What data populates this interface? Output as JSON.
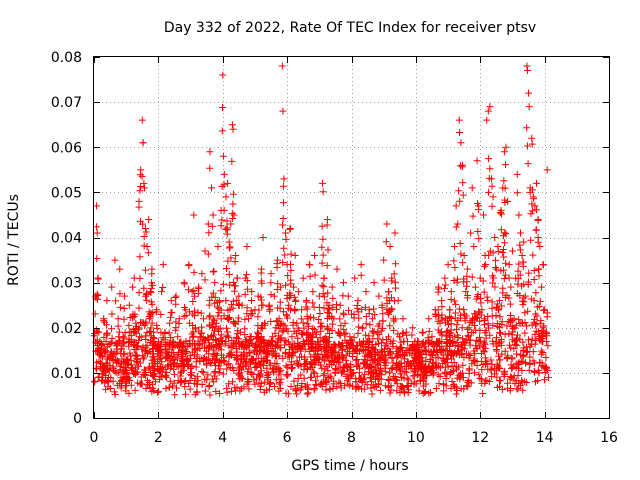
{
  "chart_data": {
    "type": "scatter",
    "title": "Day 332 of 2022, Rate Of TEC Index for receiver ptsv",
    "xlabel": "GPS time / hours",
    "ylabel": "ROTI / TECUs",
    "xlim": [
      0,
      16
    ],
    "ylim": [
      0,
      0.08
    ],
    "x_ticks": [
      0,
      2,
      4,
      6,
      8,
      10,
      12,
      14,
      16
    ],
    "x_tick_labels": [
      "0",
      "2",
      "4",
      "6",
      "8",
      "10",
      "12",
      "14",
      "16"
    ],
    "y_ticks": [
      0,
      0.01,
      0.02,
      0.03,
      0.04,
      0.05,
      0.06,
      0.07,
      0.08
    ],
    "y_tick_labels": [
      "0",
      "0.01",
      "0.02",
      "0.03",
      "0.04",
      "0.05",
      "0.06",
      "0.07",
      "0.08"
    ],
    "grid": true,
    "marker": "+",
    "color": "#ff0000",
    "series": [
      {
        "name": "ROTI",
        "points": [
          [
            0.05,
            0.027
          ],
          [
            0.08,
            0.047
          ],
          [
            0.1,
            0.041
          ],
          [
            0.12,
            0.031
          ],
          [
            0.15,
            0.019
          ],
          [
            0.2,
            0.015
          ],
          [
            0.25,
            0.012
          ],
          [
            0.3,
            0.022
          ],
          [
            0.35,
            0.011
          ],
          [
            0.4,
            0.026
          ],
          [
            0.45,
            0.009
          ],
          [
            0.5,
            0.014
          ],
          [
            0.55,
            0.029
          ],
          [
            0.6,
            0.011
          ],
          [
            0.65,
            0.035
          ],
          [
            0.7,
            0.016
          ],
          [
            0.75,
            0.022
          ],
          [
            0.8,
            0.033
          ],
          [
            0.85,
            0.012
          ],
          [
            0.9,
            0.018
          ],
          [
            0.95,
            0.027
          ],
          [
            1.0,
            0.008
          ],
          [
            1.05,
            0.013
          ],
          [
            1.1,
            0.025
          ],
          [
            1.15,
            0.019
          ],
          [
            1.2,
            0.029
          ],
          [
            1.25,
            0.031
          ],
          [
            1.3,
            0.021
          ],
          [
            1.35,
            0.016
          ],
          [
            1.4,
            0.048
          ],
          [
            1.45,
            0.055
          ],
          [
            1.5,
            0.066
          ],
          [
            1.52,
            0.061
          ],
          [
            1.55,
            0.052
          ],
          [
            1.6,
            0.042
          ],
          [
            1.65,
            0.038
          ],
          [
            1.7,
            0.044
          ],
          [
            1.75,
            0.028
          ],
          [
            1.8,
            0.033
          ],
          [
            1.85,
            0.019
          ],
          [
            1.9,
            0.012
          ],
          [
            1.95,
            0.024
          ],
          [
            2.0,
            0.016
          ],
          [
            2.05,
            0.011
          ],
          [
            2.1,
            0.028
          ],
          [
            2.15,
            0.034
          ],
          [
            2.2,
            0.019
          ],
          [
            2.25,
            0.009
          ],
          [
            2.3,
            0.014
          ],
          [
            2.35,
            0.021
          ],
          [
            2.4,
            0.026
          ],
          [
            2.45,
            0.017
          ],
          [
            2.5,
            0.012
          ],
          [
            2.55,
            0.027
          ],
          [
            2.6,
            0.018
          ],
          [
            2.65,
            0.022
          ],
          [
            2.7,
            0.01
          ],
          [
            2.75,
            0.015
          ],
          [
            2.8,
            0.03
          ],
          [
            2.85,
            0.024
          ],
          [
            2.9,
            0.013
          ],
          [
            2.95,
            0.034
          ],
          [
            3.0,
            0.011
          ],
          [
            3.05,
            0.028
          ],
          [
            3.1,
            0.045
          ],
          [
            3.15,
            0.02
          ],
          [
            3.2,
            0.014
          ],
          [
            3.25,
            0.029
          ],
          [
            3.3,
            0.018
          ],
          [
            3.35,
            0.032
          ],
          [
            3.4,
            0.022
          ],
          [
            3.45,
            0.037
          ],
          [
            3.5,
            0.013
          ],
          [
            3.55,
            0.043
          ],
          [
            3.6,
            0.059
          ],
          [
            3.65,
            0.051
          ],
          [
            3.7,
            0.045
          ],
          [
            3.75,
            0.03
          ],
          [
            3.8,
            0.021
          ],
          [
            3.85,
            0.038
          ],
          [
            3.9,
            0.026
          ],
          [
            3.95,
            0.046
          ],
          [
            4.0,
            0.076
          ],
          [
            4.02,
            0.058
          ],
          [
            4.05,
            0.054
          ],
          [
            4.1,
            0.049
          ],
          [
            4.15,
            0.052
          ],
          [
            4.2,
            0.039
          ],
          [
            4.25,
            0.043
          ],
          [
            4.3,
            0.065
          ],
          [
            4.32,
            0.064
          ],
          [
            4.35,
            0.045
          ],
          [
            4.4,
            0.036
          ],
          [
            4.45,
            0.031
          ],
          [
            4.5,
            0.027
          ],
          [
            4.55,
            0.019
          ],
          [
            4.6,
            0.025
          ],
          [
            4.65,
            0.016
          ],
          [
            4.7,
            0.031
          ],
          [
            4.75,
            0.038
          ],
          [
            4.8,
            0.022
          ],
          [
            4.85,
            0.018
          ],
          [
            4.9,
            0.028
          ],
          [
            4.95,
            0.013
          ],
          [
            5.0,
            0.024
          ],
          [
            5.05,
            0.018
          ],
          [
            5.1,
            0.027
          ],
          [
            5.15,
            0.012
          ],
          [
            5.2,
            0.033
          ],
          [
            5.25,
            0.04
          ],
          [
            5.3,
            0.021
          ],
          [
            5.35,
            0.015
          ],
          [
            5.4,
            0.009
          ],
          [
            5.45,
            0.025
          ],
          [
            5.5,
            0.032
          ],
          [
            5.55,
            0.018
          ],
          [
            5.6,
            0.027
          ],
          [
            5.65,
            0.02
          ],
          [
            5.7,
            0.035
          ],
          [
            5.75,
            0.022
          ],
          [
            5.8,
            0.029
          ],
          [
            5.85,
            0.078
          ],
          [
            5.87,
            0.068
          ],
          [
            5.9,
            0.053
          ],
          [
            5.95,
            0.041
          ],
          [
            6.0,
            0.034
          ],
          [
            6.05,
            0.025
          ],
          [
            6.1,
            0.042
          ],
          [
            6.15,
            0.018
          ],
          [
            6.2,
            0.029
          ],
          [
            6.25,
            0.036
          ],
          [
            6.3,
            0.021
          ],
          [
            6.35,
            0.028
          ],
          [
            6.4,
            0.016
          ],
          [
            6.45,
            0.024
          ],
          [
            6.5,
            0.031
          ],
          [
            6.55,
            0.013
          ],
          [
            6.6,
            0.026
          ],
          [
            6.65,
            0.022
          ],
          [
            6.7,
            0.034
          ],
          [
            6.75,
            0.017
          ],
          [
            6.8,
            0.028
          ],
          [
            6.85,
            0.036
          ],
          [
            6.9,
            0.019
          ],
          [
            6.95,
            0.014
          ],
          [
            7.0,
            0.027
          ],
          [
            7.05,
            0.021
          ],
          [
            7.1,
            0.052
          ],
          [
            7.15,
            0.031
          ],
          [
            7.2,
            0.018
          ],
          [
            7.25,
            0.044
          ],
          [
            7.3,
            0.025
          ],
          [
            7.35,
            0.015
          ],
          [
            7.4,
            0.029
          ],
          [
            7.45,
            0.022
          ],
          [
            7.5,
            0.011
          ],
          [
            7.55,
            0.033
          ],
          [
            7.6,
            0.019
          ],
          [
            7.65,
            0.025
          ],
          [
            7.7,
            0.014
          ],
          [
            7.75,
            0.03
          ],
          [
            7.8,
            0.021
          ],
          [
            7.85,
            0.012
          ],
          [
            7.9,
            0.027
          ],
          [
            7.95,
            0.018
          ],
          [
            8.0,
            0.023
          ],
          [
            8.05,
            0.01
          ],
          [
            8.1,
            0.031
          ],
          [
            8.15,
            0.016
          ],
          [
            8.2,
            0.026
          ],
          [
            8.25,
            0.011
          ],
          [
            8.3,
            0.034
          ],
          [
            8.35,
            0.02
          ],
          [
            8.4,
            0.013
          ],
          [
            8.45,
            0.028
          ],
          [
            8.5,
            0.017
          ],
          [
            8.55,
            0.024
          ],
          [
            8.6,
            0.009
          ],
          [
            8.65,
            0.022
          ],
          [
            8.7,
            0.03
          ],
          [
            8.75,
            0.014
          ],
          [
            8.8,
            0.019
          ],
          [
            8.85,
            0.027
          ],
          [
            8.9,
            0.011
          ],
          [
            8.95,
            0.025
          ],
          [
            9.0,
            0.035
          ],
          [
            9.05,
            0.016
          ],
          [
            9.1,
            0.043
          ],
          [
            9.15,
            0.028
          ],
          [
            9.2,
            0.038
          ],
          [
            9.25,
            0.031
          ],
          [
            9.3,
            0.022
          ],
          [
            9.35,
            0.041
          ],
          [
            9.4,
            0.012
          ],
          [
            9.45,
            0.026
          ],
          [
            9.5,
            0.018
          ],
          [
            9.55,
            0.009
          ],
          [
            9.6,
            0.022
          ],
          [
            9.65,
            0.014
          ],
          [
            9.7,
            0.019
          ],
          [
            9.75,
            0.007
          ],
          [
            9.8,
            0.015
          ],
          [
            9.85,
            0.011
          ],
          [
            9.9,
            0.02
          ],
          [
            9.95,
            0.008
          ],
          [
            10.0,
            0.013
          ],
          [
            10.05,
            0.017
          ],
          [
            10.1,
            0.006
          ],
          [
            10.15,
            0.012
          ],
          [
            10.2,
            0.019
          ],
          [
            10.25,
            0.009
          ],
          [
            10.3,
            0.015
          ],
          [
            10.35,
            0.011
          ],
          [
            10.4,
            0.022
          ],
          [
            10.45,
            0.013
          ],
          [
            10.5,
            0.018
          ],
          [
            10.55,
            0.01
          ],
          [
            10.6,
            0.024
          ],
          [
            10.65,
            0.016
          ],
          [
            10.7,
            0.029
          ],
          [
            10.75,
            0.021
          ],
          [
            10.8,
            0.026
          ],
          [
            10.85,
            0.014
          ],
          [
            10.9,
            0.031
          ],
          [
            10.95,
            0.019
          ],
          [
            11.0,
            0.034
          ],
          [
            11.05,
            0.024
          ],
          [
            11.1,
            0.028
          ],
          [
            11.15,
            0.017
          ],
          [
            11.2,
            0.038
          ],
          [
            11.25,
            0.047
          ],
          [
            11.3,
            0.043
          ],
          [
            11.35,
            0.066
          ],
          [
            11.4,
            0.061
          ],
          [
            11.45,
            0.056
          ],
          [
            11.5,
            0.036
          ],
          [
            11.55,
            0.028
          ],
          [
            11.6,
            0.033
          ],
          [
            11.65,
            0.02
          ],
          [
            11.7,
            0.041
          ],
          [
            11.75,
            0.051
          ],
          [
            11.8,
            0.038
          ],
          [
            11.85,
            0.029
          ],
          [
            11.9,
            0.057
          ],
          [
            11.95,
            0.047
          ],
          [
            12.0,
            0.031
          ],
          [
            12.05,
            0.024
          ],
          [
            12.1,
            0.045
          ],
          [
            12.15,
            0.036
          ],
          [
            12.2,
            0.066
          ],
          [
            12.25,
            0.068
          ],
          [
            12.3,
            0.069
          ],
          [
            12.35,
            0.053
          ],
          [
            12.4,
            0.049
          ],
          [
            12.45,
            0.04
          ],
          [
            12.5,
            0.033
          ],
          [
            12.55,
            0.038
          ],
          [
            12.6,
            0.026
          ],
          [
            12.65,
            0.046
          ],
          [
            12.7,
            0.051
          ],
          [
            12.75,
            0.059
          ],
          [
            12.8,
            0.06
          ],
          [
            12.85,
            0.048
          ],
          [
            12.9,
            0.034
          ],
          [
            12.95,
            0.029
          ],
          [
            13.0,
            0.037
          ],
          [
            13.05,
            0.022
          ],
          [
            13.1,
            0.031
          ],
          [
            13.15,
            0.054
          ],
          [
            13.2,
            0.045
          ],
          [
            13.25,
            0.041
          ],
          [
            13.3,
            0.036
          ],
          [
            13.35,
            0.039
          ],
          [
            13.4,
            0.027
          ],
          [
            13.45,
            0.078
          ],
          [
            13.47,
            0.077
          ],
          [
            13.5,
            0.072
          ],
          [
            13.52,
            0.069
          ],
          [
            13.55,
            0.051
          ],
          [
            13.6,
            0.062
          ],
          [
            13.65,
            0.049
          ],
          [
            13.7,
            0.047
          ],
          [
            13.75,
            0.052
          ],
          [
            13.8,
            0.044
          ],
          [
            13.85,
            0.038
          ],
          [
            13.9,
            0.029
          ],
          [
            13.95,
            0.034
          ],
          [
            14.0,
            0.024
          ],
          [
            14.05,
            0.019
          ],
          [
            14.08,
            0.055
          ],
          [
            14.1,
            0.016
          ],
          [
            14.12,
            0.009
          ]
        ]
      }
    ]
  }
}
